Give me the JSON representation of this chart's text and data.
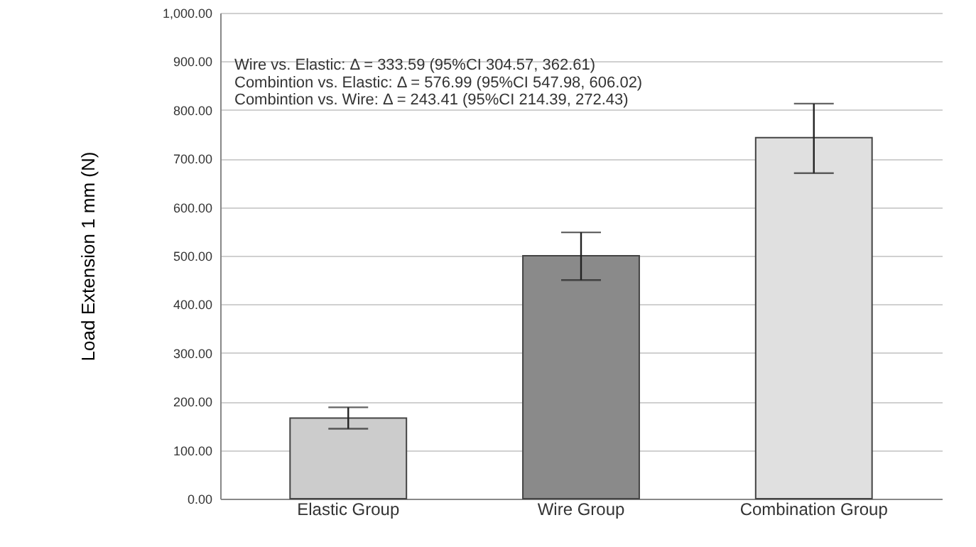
{
  "chart_data": {
    "type": "bar",
    "ylabel": "Load Extension 1 mm (N)",
    "categories": [
      "Elastic Group",
      "Wire Group",
      "Combination Group"
    ],
    "values": [
      166,
      500,
      743
    ],
    "colors": [
      "#cccccc",
      "#8a8a8a",
      "#e0e0e0"
    ],
    "errors": [
      [
        144,
        188
      ],
      [
        450,
        548
      ],
      [
        670,
        813
      ]
    ],
    "ylim": [
      0,
      1000
    ],
    "yticks": [
      {
        "value": 0,
        "label": "0.00"
      },
      {
        "value": 100,
        "label": "100.00"
      },
      {
        "value": 200,
        "label": "200.00"
      },
      {
        "value": 300,
        "label": "300.00"
      },
      {
        "value": 400,
        "label": "400.00"
      },
      {
        "value": 500,
        "label": "500.00"
      },
      {
        "value": 600,
        "label": "600.00"
      },
      {
        "value": 700,
        "label": "700.00"
      },
      {
        "value": 800,
        "label": "800.00"
      },
      {
        "value": 900,
        "label": "900.00"
      },
      {
        "value": 1000,
        "label": "1,000.00"
      }
    ],
    "grid": "y",
    "annotations": [
      "Wire vs. Elastic: Δ = 333.59 (95%CI 304.57, 362.61)",
      "Combintion vs. Elastic: Δ = 576.99 (95%CI 547.98, 606.02)",
      "Combintion vs. Wire: Δ = 243.41 (95%CI 214.39, 272.43)"
    ]
  }
}
